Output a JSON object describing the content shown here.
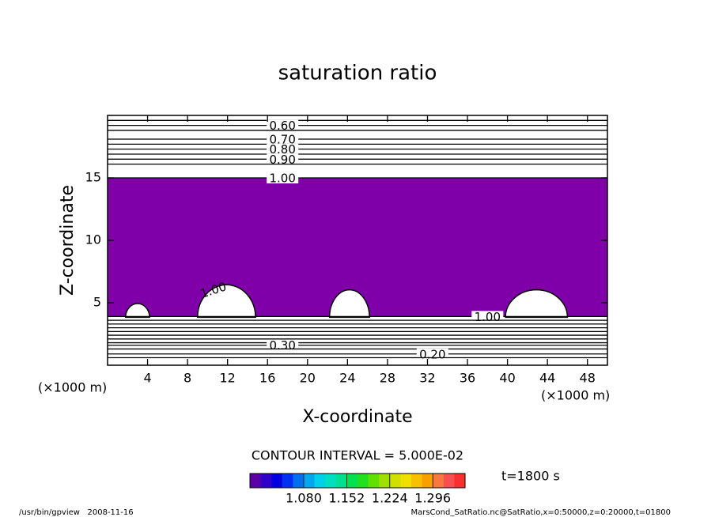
{
  "chart_data": {
    "type": "contour",
    "title": "saturation ratio",
    "xlabel": "X-coordinate",
    "ylabel": "Z-coordinate",
    "x_unit": "(×1000 m)",
    "y_unit": "(×1000 m)",
    "xlim": [
      0,
      50
    ],
    "ylim": [
      0,
      20
    ],
    "xticks": [
      4,
      8,
      12,
      16,
      20,
      24,
      28,
      32,
      36,
      40,
      44,
      48
    ],
    "yticks": [
      5,
      10,
      15
    ],
    "fill_color": "#7f00a8",
    "fill_range": [
      3.9,
      15
    ],
    "clear_regions": [
      {
        "x0": 1.8,
        "x1": 4.2,
        "top": 5.0
      },
      {
        "x0": 9.0,
        "x1": 14.8,
        "top": 6.5,
        "label": "1.00"
      },
      {
        "x0": 22.2,
        "x1": 26.2,
        "top": 6.1
      },
      {
        "x0": 39.8,
        "x1": 46.0,
        "top": 6.1
      }
    ],
    "contours": [
      {
        "z": 19.6
      },
      {
        "z": 19.2,
        "label": "0.60",
        "label_x": 17.5
      },
      {
        "z": 18.8
      },
      {
        "z": 18.1,
        "label": "0.70",
        "label_x": 17.5
      },
      {
        "z": 17.7
      },
      {
        "z": 17.3,
        "label": "0.80",
        "label_x": 17.5
      },
      {
        "z": 16.9
      },
      {
        "z": 16.5,
        "label": "0.90",
        "label_x": 17.5
      },
      {
        "z": 16.1
      },
      {
        "z": 15.0,
        "label": "1.00",
        "label_x": 17.5
      },
      {
        "z": 3.9,
        "label": "1.00",
        "label_x": 38.0
      },
      {
        "z": 3.6
      },
      {
        "z": 3.3
      },
      {
        "z": 3.0
      },
      {
        "z": 2.7
      },
      {
        "z": 2.4
      },
      {
        "z": 2.1
      },
      {
        "z": 1.8
      },
      {
        "z": 1.6,
        "label": "0.30",
        "label_x": 17.5
      },
      {
        "z": 1.3
      },
      {
        "z": 0.9,
        "label": "0.20",
        "label_x": 32.5
      },
      {
        "z": 0.6
      }
    ],
    "contour_interval": "CONTOUR INTERVAL = 5.000E-02",
    "time_label": "t=1800 s",
    "colorbar": {
      "lim": [
        0.99,
        1.35
      ],
      "ticks": [
        {
          "value": 1.08,
          "label": "1.080"
        },
        {
          "value": 1.152,
          "label": "1.152"
        },
        {
          "value": 1.224,
          "label": "1.224"
        },
        {
          "value": 1.296,
          "label": "1.296"
        }
      ],
      "colors": [
        "#5a00a8",
        "#3000c8",
        "#0000e0",
        "#0030f0",
        "#0070f0",
        "#00a8f0",
        "#00d0e8",
        "#00e0c0",
        "#00e090",
        "#00e050",
        "#20e020",
        "#60e000",
        "#a0e000",
        "#d0e000",
        "#f0e000",
        "#f8c000",
        "#f8a000",
        "#f87840",
        "#f85050",
        "#f83030"
      ]
    },
    "footer_left": "/usr/bin/gpview   2008-11-16",
    "footer_right": "MarsCond_SatRatio.nc@SatRatio,x=0:50000,z=0:20000,t=01800"
  }
}
